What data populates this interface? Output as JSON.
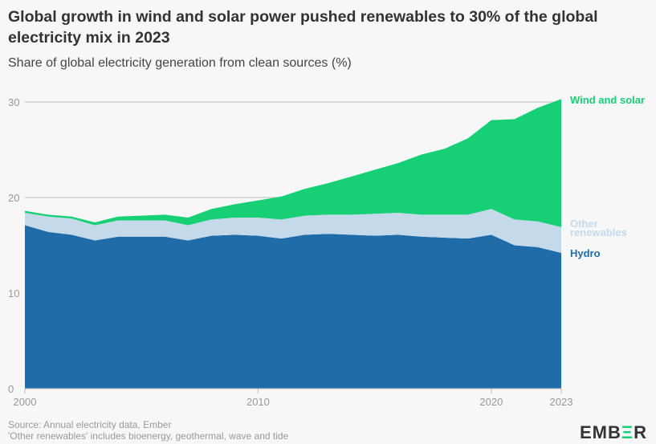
{
  "chart_data": {
    "type": "area",
    "stacked": true,
    "title": "Global growth in wind and solar power pushed renewables to 30% of the global electricity mix in 2023",
    "subtitle": "Share of global electricity generation from clean sources (%)",
    "xlabel": "",
    "ylabel": "",
    "x": [
      2000,
      2001,
      2002,
      2003,
      2004,
      2005,
      2006,
      2007,
      2008,
      2009,
      2010,
      2011,
      2012,
      2013,
      2014,
      2015,
      2016,
      2017,
      2018,
      2019,
      2020,
      2021,
      2022,
      2023
    ],
    "xticks": [
      "2000",
      "2010",
      "2020",
      "2023"
    ],
    "yticks": [
      "0",
      "10",
      "20",
      "30"
    ],
    "ylim": [
      0,
      30
    ],
    "grid": true,
    "legend": "right-end labels",
    "series": [
      {
        "name": "Hydro",
        "color": "#1f6ca8",
        "values": [
          17.1,
          16.4,
          16.1,
          15.5,
          15.9,
          15.9,
          15.9,
          15.5,
          16.0,
          16.1,
          16.0,
          15.7,
          16.1,
          16.2,
          16.1,
          16.0,
          16.1,
          15.9,
          15.8,
          15.7,
          16.1,
          15.0,
          14.8,
          14.2
        ]
      },
      {
        "name": "Other renewables",
        "color": "#c4d9ea",
        "values": [
          1.3,
          1.6,
          1.7,
          1.6,
          1.7,
          1.7,
          1.7,
          1.6,
          1.7,
          1.8,
          1.9,
          2.0,
          2.0,
          2.0,
          2.1,
          2.3,
          2.3,
          2.3,
          2.4,
          2.5,
          2.7,
          2.7,
          2.7,
          2.7
        ]
      },
      {
        "name": "Wind and solar",
        "color": "#17cf75",
        "values": [
          0.2,
          0.2,
          0.2,
          0.3,
          0.4,
          0.5,
          0.6,
          0.8,
          1.1,
          1.4,
          1.8,
          2.4,
          2.8,
          3.3,
          4.0,
          4.6,
          5.2,
          6.3,
          6.9,
          8.0,
          9.3,
          10.5,
          11.9,
          13.4
        ]
      }
    ]
  },
  "labels": {
    "wind_solar": "Wind and solar",
    "other_1": "Other",
    "other_2": "renewables",
    "hydro": "Hydro"
  },
  "footer": {
    "source": "Source: Annual electricity data, Ember",
    "note": "'Other renewables' includes bioenergy, geothermal, wave and tide",
    "logo_left": "EMB",
    "logo_mid": "Ξ",
    "logo_right": "R"
  }
}
